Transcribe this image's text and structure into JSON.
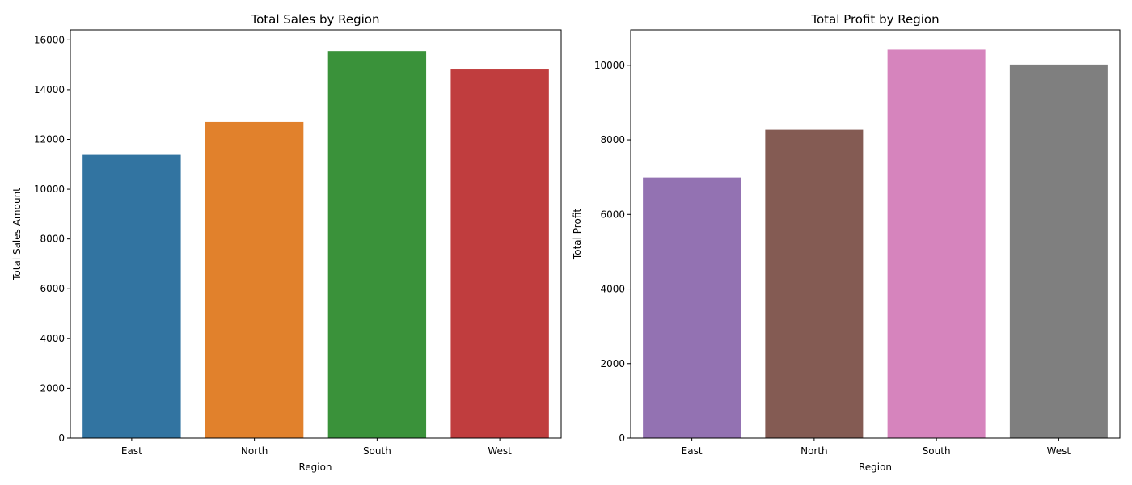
{
  "chart_data": [
    {
      "type": "bar",
      "title": "Total Sales by Region",
      "xlabel": "Region",
      "ylabel": "Total Sales Amount",
      "categories": [
        "East",
        "North",
        "South",
        "West"
      ],
      "values": [
        11380,
        12700,
        15550,
        14840
      ],
      "colors": [
        "#3274a1",
        "#e1812c",
        "#3a923a",
        "#c03d3e"
      ],
      "ylim": [
        0,
        16400
      ],
      "yticks": [
        0,
        2000,
        4000,
        6000,
        8000,
        10000,
        12000,
        14000,
        16000
      ],
      "grid": false
    },
    {
      "type": "bar",
      "title": "Total Profit by Region",
      "xlabel": "Region",
      "ylabel": "Total Profit",
      "categories": [
        "East",
        "North",
        "South",
        "West"
      ],
      "values": [
        6990,
        8270,
        10420,
        10020
      ],
      "colors": [
        "#9372b2",
        "#845b53",
        "#d684bd",
        "#7f7f7f"
      ],
      "ylim": [
        0,
        10950
      ],
      "yticks": [
        0,
        2000,
        4000,
        6000,
        8000,
        10000
      ],
      "grid": false
    }
  ]
}
